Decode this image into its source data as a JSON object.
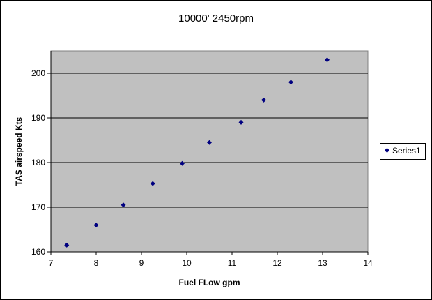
{
  "chart_data": {
    "type": "scatter",
    "title": "10000' 2450rpm",
    "xlabel": "Fuel FLow gpm",
    "ylabel": "TAS airspeed Kts",
    "xlim": [
      7,
      14
    ],
    "ylim": [
      160,
      205
    ],
    "x_ticks": [
      "7",
      "8",
      "9",
      "10",
      "11",
      "12",
      "13",
      "14"
    ],
    "y_ticks": [
      "160",
      "170",
      "180",
      "190",
      "200"
    ],
    "grid": "horizontal major gridlines",
    "legend": "right",
    "series": [
      {
        "name": "Series1",
        "color": "#000080",
        "x": [
          7.35,
          8.0,
          8.6,
          9.25,
          9.9,
          10.5,
          11.2,
          11.7,
          12.3,
          13.1
        ],
        "y": [
          161.5,
          166.0,
          170.5,
          175.3,
          179.8,
          184.5,
          189.0,
          194.0,
          198.0,
          203.0
        ]
      }
    ],
    "plot_area_color": "#c0c0c0"
  }
}
